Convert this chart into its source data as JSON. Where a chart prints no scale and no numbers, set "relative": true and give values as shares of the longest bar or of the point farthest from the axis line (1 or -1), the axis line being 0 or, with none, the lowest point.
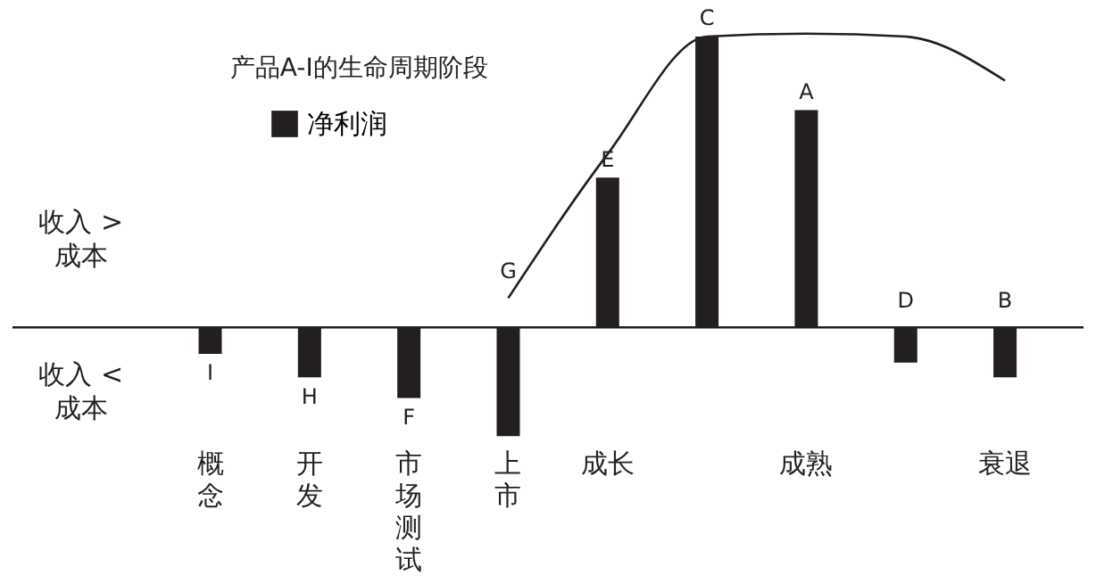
{
  "chart_data": {
    "type": "bar",
    "title": "产品A-I的生命周期阶段",
    "relative": true,
    "categories": [
      "I",
      "H",
      "F",
      "G",
      "E",
      "C",
      "A",
      "D",
      "B"
    ],
    "series": [
      {
        "name": "净利润",
        "color": "#231f20",
        "values": [
          -0.09,
          -0.17,
          -0.24,
          -0.37,
          0.51,
          0.99,
          0.74,
          -0.12,
          -0.17
        ]
      },
      {
        "type": "line",
        "color": "#231f20",
        "values": [
          null,
          null,
          null,
          0.1,
          0.59,
          0.99,
          1.0,
          0.99,
          0.84
        ]
      }
    ],
    "annotations": [
      "收入 > 成本",
      "收入 < 成本",
      "概念",
      "开发",
      "市场测试",
      "上市",
      "成长",
      "成熟",
      "衰退"
    ],
    "legend": "top left",
    "marker": "none"
  }
}
